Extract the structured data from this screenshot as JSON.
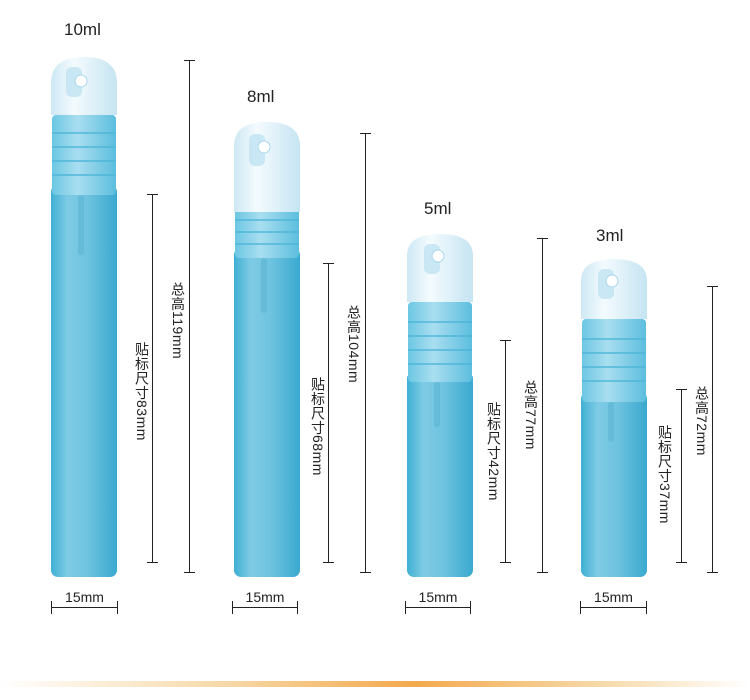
{
  "products": [
    {
      "capacity": "10ml",
      "total_height": "总高119mm",
      "label_size": "贴标尺寸83mm",
      "width": "15mm"
    },
    {
      "capacity": "8ml",
      "total_height": "总高104mm",
      "label_size": "贴标尺寸68mm",
      "width": "15mm"
    },
    {
      "capacity": "5ml",
      "total_height": "总高77mm",
      "label_size": "贴标尺寸42mm",
      "width": "15mm"
    },
    {
      "capacity": "3ml",
      "total_height": "总高72mm",
      "label_size": "贴标尺寸37mm",
      "width": "15mm"
    }
  ],
  "colors": {
    "bottle": "#62bfdc",
    "cap": "#d8eef8",
    "accent": "#f3a94d"
  }
}
